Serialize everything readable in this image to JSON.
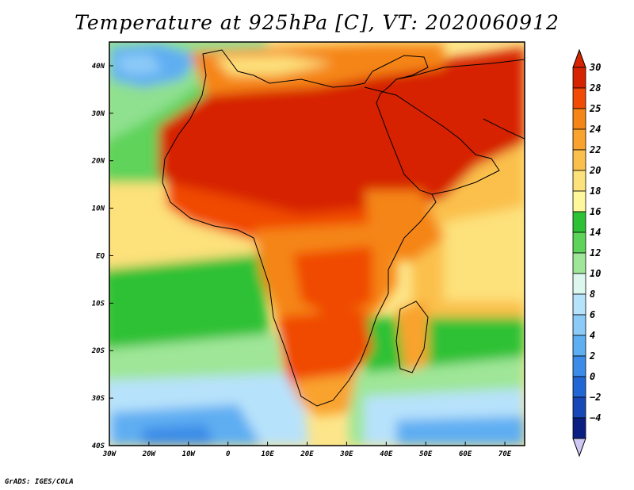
{
  "title": "Temperature at 925hPa [C], VT: 2020060912",
  "footer": "GrADS: IGES/COLA",
  "map": {
    "projection": "lat-lon",
    "lon_range": [
      -30,
      75
    ],
    "lat_range": [
      -40,
      45
    ],
    "lat_labels": [
      "40N",
      "30N",
      "20N",
      "10N",
      "EQ",
      "10S",
      "20S",
      "30S",
      "40S"
    ],
    "lon_labels": [
      "30W",
      "20W",
      "10W",
      "0",
      "10E",
      "20E",
      "30E",
      "40E",
      "50E",
      "60E",
      "70E"
    ],
    "variable": "Temperature at 925hPa",
    "units": "C"
  },
  "colorbar": {
    "labels": [
      "30",
      "28",
      "25",
      "24",
      "22",
      "20",
      "18",
      "16",
      "14",
      "12",
      "10",
      "8",
      "6",
      "4",
      "2",
      "0",
      "−2",
      "−4"
    ],
    "colors": [
      "#d62400",
      "#f04a05",
      "#f58516",
      "#f9a32e",
      "#fbc04c",
      "#fde17a",
      "#fff79c",
      "#2dc136",
      "#5ed35a",
      "#9fe698",
      "#dcf8ee",
      "#b7e2fb",
      "#8ccbf8",
      "#5eaef2",
      "#3b8ce8",
      "#2266d6",
      "#1848b8",
      "#0b1f83"
    ],
    "below_color": "#cfc7f4"
  }
}
